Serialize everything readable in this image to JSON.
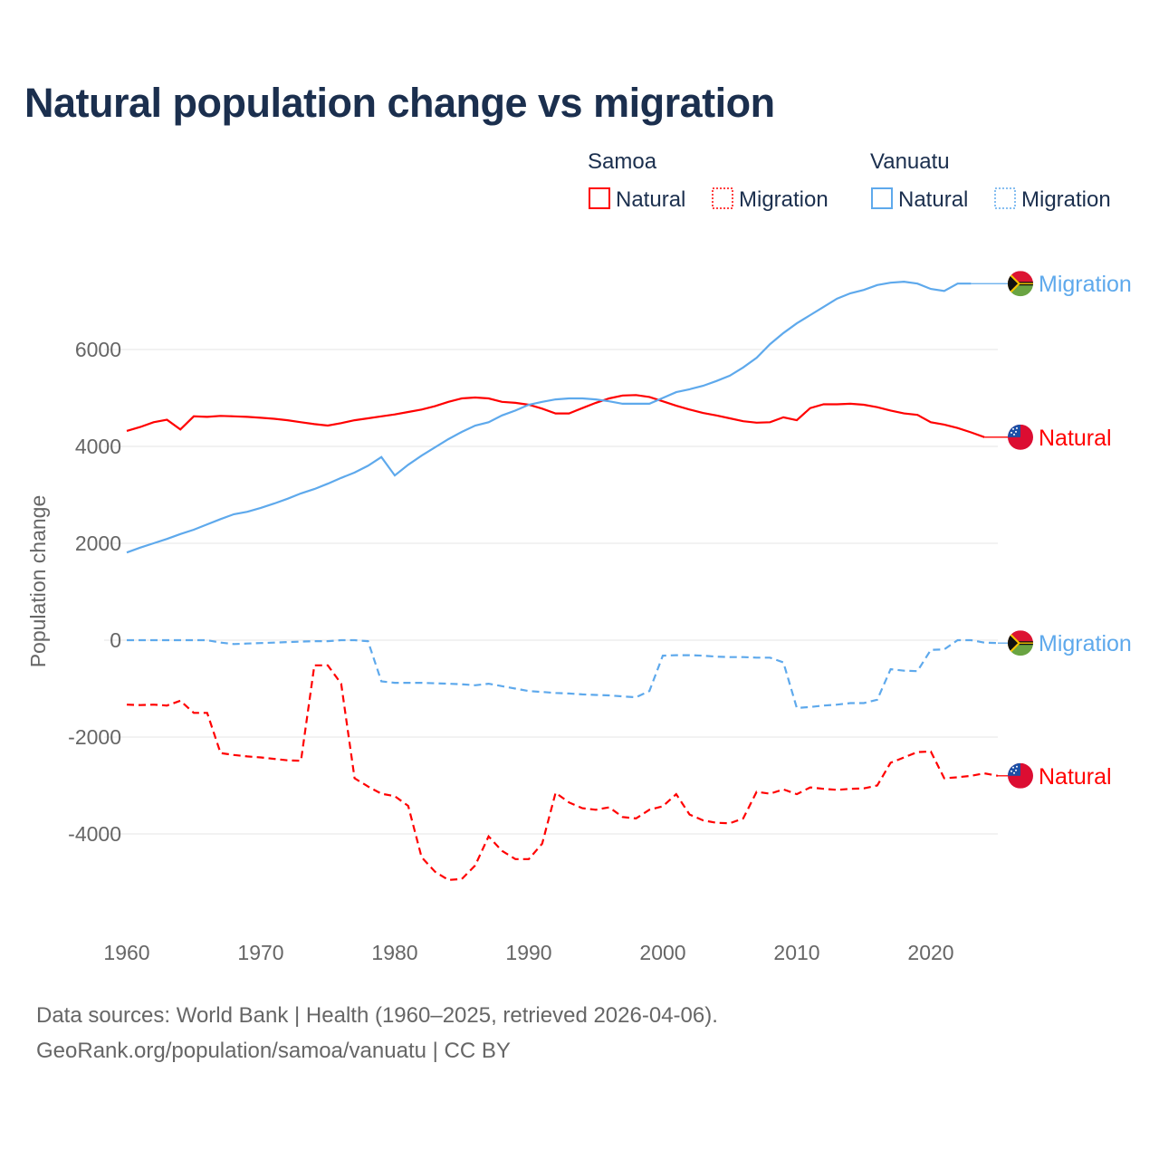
{
  "chart_data": {
    "type": "line",
    "title": "Natural population change vs migration",
    "xlabel": "",
    "ylabel": "Population change",
    "xlim": [
      1960,
      2025
    ],
    "ylim": [
      -6000,
      7500
    ],
    "x_ticks": [
      1960,
      1970,
      1980,
      1990,
      2000,
      2010,
      2020
    ],
    "y_ticks": [
      -4000,
      -2000,
      0,
      2000,
      4000,
      6000
    ],
    "grid": true,
    "legend": {
      "placement": "top-right",
      "groups": [
        {
          "name": "Samoa",
          "items": [
            "Natural",
            "Migration"
          ]
        },
        {
          "name": "Vanuatu",
          "items": [
            "Natural",
            "Migration"
          ]
        }
      ]
    },
    "series": [
      {
        "name": "Samoa Natural",
        "country": "Samoa",
        "label": "Natural",
        "color": "#ff0000",
        "style": "solid",
        "start": 1960,
        "values": [
          4320,
          4400,
          4500,
          4550,
          4350,
          4620,
          4610,
          4630,
          4620,
          4610,
          4590,
          4570,
          4540,
          4500,
          4460,
          4430,
          4480,
          4540,
          4580,
          4620,
          4660,
          4710,
          4760,
          4830,
          4920,
          4990,
          5010,
          4990,
          4920,
          4900,
          4860,
          4780,
          4680,
          4680,
          4790,
          4900,
          4990,
          5050,
          5060,
          5020,
          4930,
          4840,
          4760,
          4690,
          4640,
          4580,
          4520,
          4490,
          4500,
          4600,
          4540,
          4790,
          4870,
          4870,
          4880,
          4860,
          4810,
          4740,
          4680,
          4650,
          4500,
          4450,
          4380,
          4290,
          4190
        ]
      },
      {
        "name": "Samoa Migration",
        "country": "Samoa",
        "label": "Migration",
        "color": "#ff0000",
        "style": "dashed",
        "start": 1960,
        "values": [
          -1330,
          -1340,
          -1330,
          -1350,
          -1250,
          -1500,
          -1500,
          -2330,
          -2370,
          -2400,
          -2420,
          -2450,
          -2480,
          -2490,
          -520,
          -520,
          -900,
          -2850,
          -3020,
          -3170,
          -3220,
          -3420,
          -4480,
          -4780,
          -4950,
          -4930,
          -4650,
          -4050,
          -4350,
          -4520,
          -4520,
          -4200,
          -3150,
          -3350,
          -3470,
          -3500,
          -3450,
          -3650,
          -3680,
          -3500,
          -3430,
          -3180,
          -3600,
          -3720,
          -3770,
          -3780,
          -3680,
          -3130,
          -3170,
          -3080,
          -3180,
          -3040,
          -3070,
          -3090,
          -3070,
          -3060,
          -3000,
          -2530,
          -2420,
          -2310,
          -2300,
          -2850,
          -2830,
          -2800,
          -2750,
          -2800
        ]
      },
      {
        "name": "Vanuatu Natural",
        "country": "Vanuatu",
        "label": "Natural",
        "color": "#5ea9ec",
        "style": "solid",
        "start": 1960,
        "values": [
          1810,
          1910,
          2000,
          2090,
          2190,
          2280,
          2390,
          2500,
          2600,
          2650,
          2730,
          2820,
          2920,
          3030,
          3120,
          3230,
          3350,
          3460,
          3600,
          3780,
          3400,
          3620,
          3810,
          3980,
          4150,
          4300,
          4430,
          4500,
          4640,
          4740,
          4860,
          4920,
          4970,
          4990,
          4990,
          4970,
          4930,
          4880,
          4880,
          4880,
          5000,
          5120,
          5180,
          5250,
          5350,
          5460,
          5630,
          5830,
          6110,
          6340,
          6540,
          6710,
          6880,
          7050,
          7160,
          7230,
          7330,
          7380,
          7400,
          7360,
          7250,
          7210,
          7360,
          7360
        ]
      },
      {
        "name": "Vanuatu Migration",
        "country": "Vanuatu",
        "label": "Migration",
        "color": "#5ea9ec",
        "style": "dashed",
        "start": 1960,
        "values": [
          0,
          0,
          0,
          0,
          0,
          0,
          0,
          -50,
          -80,
          -70,
          -60,
          -50,
          -40,
          -30,
          -20,
          -20,
          0,
          0,
          -20,
          -850,
          -880,
          -880,
          -880,
          -890,
          -900,
          -910,
          -930,
          -900,
          -950,
          -1000,
          -1050,
          -1070,
          -1090,
          -1100,
          -1120,
          -1130,
          -1140,
          -1160,
          -1180,
          -1050,
          -320,
          -310,
          -310,
          -320,
          -340,
          -350,
          -350,
          -360,
          -360,
          -460,
          -1400,
          -1380,
          -1350,
          -1330,
          -1300,
          -1300,
          -1230,
          -600,
          -630,
          -640,
          -200,
          -190,
          0,
          0,
          -50,
          -60
        ]
      }
    ],
    "end_labels": [
      "Natural",
      "Natural",
      "Migration",
      "Migration"
    ]
  },
  "footer": {
    "line1": "Data sources: World Bank | Health (1960–2025, retrieved 2026-04-06).",
    "line2": "GeoRank.org/population/samoa/vanuatu | CC BY"
  }
}
